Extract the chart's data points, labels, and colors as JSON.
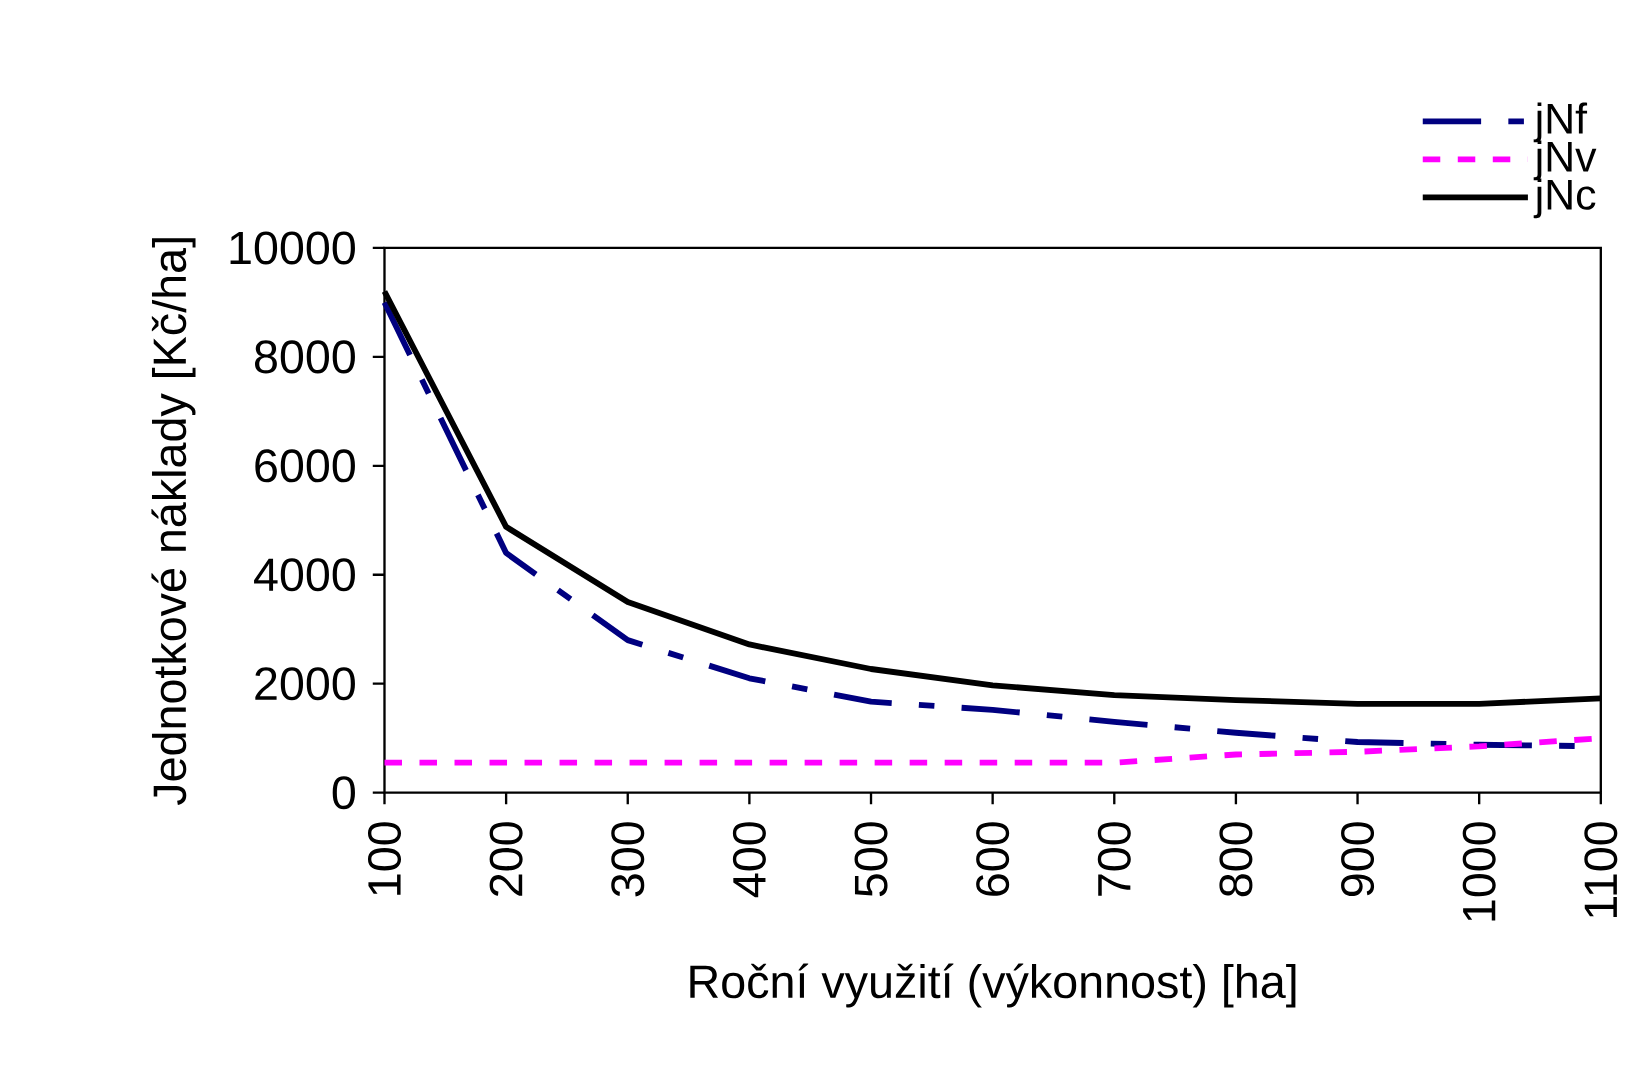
{
  "chart_data": {
    "type": "line",
    "xlabel": "Roční využití (výkonnost) [ha]",
    "ylabel": "Jednotkové náklady [Kč/ha]",
    "x": [
      100,
      200,
      300,
      400,
      500,
      600,
      700,
      800,
      900,
      1000,
      1100
    ],
    "series": [
      {
        "name": "jNf",
        "color": "#000080",
        "line_style": "dashdot",
        "values": [
          9000,
          4400,
          2800,
          2100,
          1670,
          1520,
          1300,
          1100,
          930,
          880,
          850
        ]
      },
      {
        "name": "jNv",
        "color": "#ff00ff",
        "line_style": "dashed",
        "values": [
          550,
          550,
          550,
          550,
          550,
          550,
          550,
          700,
          750,
          850,
          1000
        ]
      },
      {
        "name": "jNc",
        "color": "#000000",
        "line_style": "solid",
        "values": [
          9200,
          4880,
          3500,
          2720,
          2270,
          1970,
          1790,
          1700,
          1630,
          1630,
          1730
        ]
      }
    ],
    "xlim": [
      100,
      1100
    ],
    "xticks": [
      100,
      200,
      300,
      400,
      500,
      600,
      700,
      800,
      900,
      1000,
      1100
    ],
    "ylim": [
      0,
      10000
    ],
    "yticks": [
      0,
      2000,
      4000,
      6000,
      8000,
      10000
    ],
    "grid": false,
    "legend": "top right",
    "marker": "none"
  }
}
